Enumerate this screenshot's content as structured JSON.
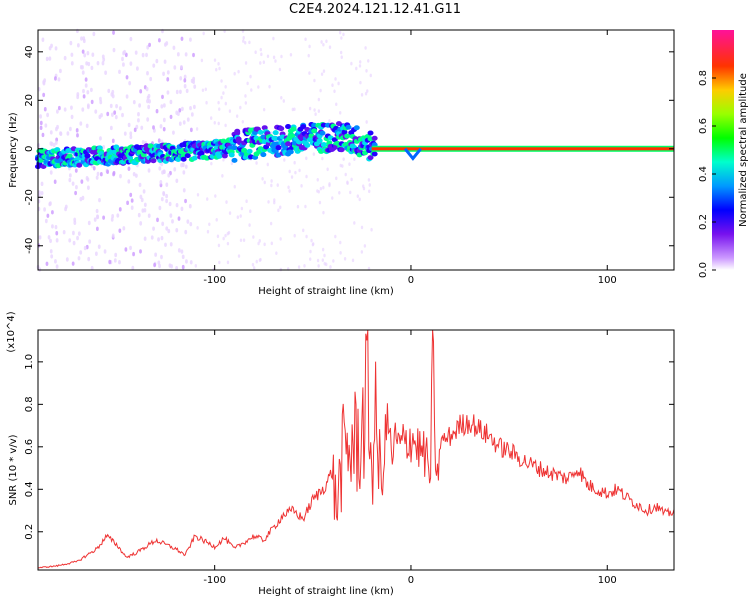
{
  "title": "C2E4.2024.121.12.41.G11",
  "chart_data": [
    {
      "type": "heatmap",
      "xlabel": "Height of straight line (km)",
      "ylabel": "Frequency (Hz)",
      "xlim": [
        -190,
        134
      ],
      "ylim": [
        -50,
        49
      ],
      "xticks": [
        -100,
        0,
        100
      ],
      "yticks": [
        -40,
        -20,
        0,
        20,
        40
      ],
      "colorbar": {
        "label": "Normalized spectral amplitude",
        "range": [
          0.0,
          1.0
        ],
        "ticks": [
          0.0,
          0.2,
          0.4,
          0.6,
          0.8
        ]
      },
      "ridge": {
        "description_points_x": [
          -190,
          -160,
          -130,
          -110,
          -95,
          -85,
          -70,
          -55,
          -40,
          -30,
          -20,
          -10,
          0,
          2,
          10,
          50,
          100,
          134
        ],
        "description_points_y": [
          -4,
          -3,
          -2,
          -1,
          0,
          2,
          3,
          4,
          5,
          4,
          1,
          0,
          -3,
          -1,
          0,
          0,
          0,
          0
        ]
      }
    },
    {
      "type": "line",
      "xlabel": "Height of straight line (km)",
      "ylabel": "SNR (10 * v/v)",
      "y_multiplier": "(x10^4)",
      "xlim": [
        -190,
        134
      ],
      "ylim": [
        0.02,
        1.15
      ],
      "xticks": [
        -100,
        0,
        100
      ],
      "yticks": [
        0.2,
        0.4,
        0.6,
        0.8,
        1.0
      ],
      "series": [
        {
          "color": "#ee3333",
          "x": [
            -190,
            -180,
            -170,
            -160,
            -155,
            -150,
            -145,
            -140,
            -130,
            -120,
            -115,
            -110,
            -100,
            -95,
            -90,
            -85,
            -80,
            -75,
            -70,
            -65,
            -60,
            -55,
            -50,
            -45,
            -40,
            -38,
            -35,
            -30,
            -25,
            -22,
            -20,
            -18,
            -15,
            -12,
            -10,
            -8,
            -5,
            0,
            5,
            8,
            10,
            11,
            13,
            15,
            20,
            25,
            30,
            35,
            40,
            45,
            50,
            55,
            60,
            70,
            80,
            85,
            90,
            95,
            100,
            105,
            110,
            120,
            125,
            130,
            134
          ],
          "y": [
            0.03,
            0.04,
            0.06,
            0.12,
            0.18,
            0.14,
            0.08,
            0.1,
            0.16,
            0.12,
            0.09,
            0.18,
            0.13,
            0.17,
            0.12,
            0.15,
            0.18,
            0.16,
            0.22,
            0.28,
            0.3,
            0.26,
            0.35,
            0.4,
            0.48,
            0.3,
            0.55,
            0.6,
            0.65,
            0.9,
            0.5,
            0.7,
            0.4,
            0.75,
            0.55,
            0.62,
            0.6,
            0.65,
            0.58,
            0.55,
            0.45,
            1.1,
            0.4,
            0.62,
            0.65,
            0.7,
            0.72,
            0.68,
            0.65,
            0.6,
            0.58,
            0.55,
            0.52,
            0.48,
            0.45,
            0.5,
            0.42,
            0.4,
            0.38,
            0.4,
            0.36,
            0.3,
            0.32,
            0.28,
            0.3
          ]
        }
      ]
    }
  ]
}
